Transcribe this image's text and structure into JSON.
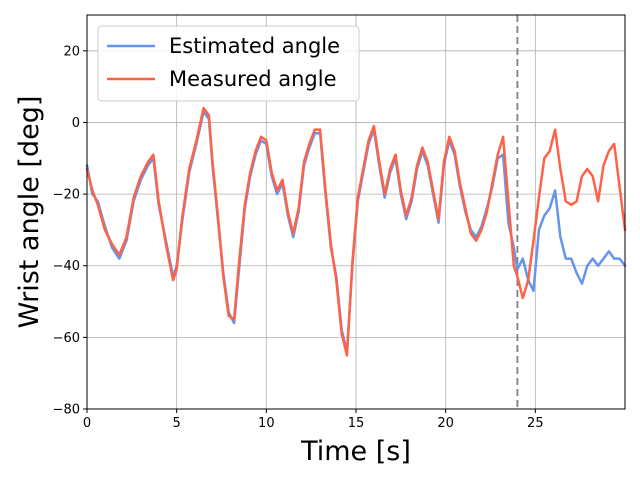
{
  "chart_data": {
    "type": "line",
    "title": "",
    "xlabel": "Time [s]",
    "ylabel": "Wrist angle [deg]",
    "xlim": [
      0,
      30
    ],
    "ylim": [
      -80,
      30
    ],
    "xticks": [
      0,
      5,
      10,
      15,
      20,
      25
    ],
    "yticks": [
      -80,
      -60,
      -40,
      -20,
      0,
      20
    ],
    "grid": true,
    "legend_position": "top-left",
    "vline": {
      "x": 24,
      "style": "dashed",
      "color": "#808080"
    },
    "series": [
      {
        "name": "Estimated angle",
        "color": "#6495ED",
        "x": [
          0,
          0.3,
          0.6,
          1.0,
          1.4,
          1.8,
          2.2,
          2.6,
          3.0,
          3.4,
          3.7,
          4.0,
          4.4,
          4.8,
          5.0,
          5.3,
          5.7,
          6.1,
          6.5,
          6.8,
          7.0,
          7.3,
          7.6,
          7.9,
          8.2,
          8.5,
          8.8,
          9.1,
          9.4,
          9.7,
          10.0,
          10.3,
          10.6,
          10.9,
          11.2,
          11.5,
          11.8,
          12.1,
          12.4,
          12.7,
          13.0,
          13.3,
          13.6,
          13.9,
          14.2,
          14.5,
          14.8,
          15.1,
          15.4,
          15.7,
          16.0,
          16.3,
          16.6,
          16.9,
          17.2,
          17.5,
          17.8,
          18.1,
          18.4,
          18.7,
          19.0,
          19.3,
          19.6,
          19.9,
          20.2,
          20.5,
          20.8,
          21.1,
          21.4,
          21.7,
          22.0,
          22.3,
          22.6,
          22.9,
          23.2,
          23.5,
          23.8,
          24.0,
          24.3,
          24.6,
          24.9,
          25.2,
          25.5,
          25.8,
          26.1,
          26.4,
          26.7,
          27.0,
          27.3,
          27.6,
          27.9,
          28.2,
          28.5,
          28.8,
          29.1,
          29.4,
          29.7,
          30.0
        ],
        "y": [
          -12,
          -20,
          -22,
          -29,
          -35,
          -38,
          -33,
          -22,
          -16,
          -12,
          -10,
          -23,
          -33,
          -43,
          -40,
          -28,
          -14,
          -6,
          3,
          1,
          -12,
          -27,
          -42,
          -53,
          -56,
          -40,
          -24,
          -15,
          -9,
          -5,
          -6,
          -15,
          -20,
          -17,
          -26,
          -32,
          -25,
          -12,
          -7,
          -3,
          -3,
          -20,
          -35,
          -43,
          -58,
          -64,
          -40,
          -22,
          -14,
          -6,
          -2,
          -12,
          -21,
          -14,
          -10,
          -20,
          -27,
          -22,
          -13,
          -8,
          -12,
          -20,
          -28,
          -12,
          -5,
          -9,
          -18,
          -25,
          -30,
          -32,
          -29,
          -24,
          -18,
          -10,
          -9,
          -28,
          -35,
          -41,
          -38,
          -44,
          -47,
          -30,
          -26,
          -24,
          -19,
          -32,
          -38,
          -38,
          -42,
          -45,
          -40,
          -38,
          -40,
          -38,
          -36,
          -38,
          -38,
          -40
        ]
      },
      {
        "name": "Measured angle",
        "color": "#FF6347",
        "x": [
          0,
          0.3,
          0.6,
          1.0,
          1.4,
          1.8,
          2.2,
          2.6,
          3.0,
          3.4,
          3.7,
          4.0,
          4.4,
          4.8,
          5.0,
          5.3,
          5.7,
          6.1,
          6.5,
          6.8,
          7.0,
          7.3,
          7.6,
          7.9,
          8.2,
          8.5,
          8.8,
          9.1,
          9.4,
          9.7,
          10.0,
          10.3,
          10.6,
          10.9,
          11.2,
          11.5,
          11.8,
          12.1,
          12.4,
          12.7,
          13.0,
          13.3,
          13.6,
          13.9,
          14.2,
          14.5,
          14.8,
          15.1,
          15.4,
          15.7,
          16.0,
          16.3,
          16.6,
          16.9,
          17.2,
          17.5,
          17.8,
          18.1,
          18.4,
          18.7,
          19.0,
          19.3,
          19.6,
          19.9,
          20.2,
          20.5,
          20.8,
          21.1,
          21.4,
          21.7,
          22.0,
          22.3,
          22.6,
          22.9,
          23.2,
          23.5,
          23.8,
          24.0,
          24.3,
          24.6,
          24.9,
          25.2,
          25.5,
          25.8,
          26.1,
          26.4,
          26.7,
          27.0,
          27.3,
          27.6,
          27.9,
          28.2,
          28.5,
          28.8,
          29.1,
          29.4,
          29.7,
          30.0
        ],
        "y": [
          -13,
          -19,
          -23,
          -30,
          -34,
          -37,
          -32,
          -21,
          -15,
          -11,
          -9,
          -22,
          -34,
          -44,
          -41,
          -27,
          -13,
          -5,
          4,
          2,
          -11,
          -26,
          -43,
          -54,
          -55,
          -38,
          -23,
          -14,
          -8,
          -4,
          -5,
          -14,
          -19,
          -16,
          -25,
          -31,
          -24,
          -11,
          -6,
          -2,
          -2,
          -19,
          -34,
          -44,
          -59,
          -65,
          -39,
          -21,
          -13,
          -5,
          -1,
          -11,
          -20,
          -13,
          -9,
          -19,
          -26,
          -21,
          -12,
          -7,
          -11,
          -19,
          -27,
          -11,
          -4,
          -8,
          -17,
          -24,
          -31,
          -33,
          -30,
          -25,
          -17,
          -9,
          -4,
          -22,
          -40,
          -43,
          -49,
          -44,
          -33,
          -21,
          -10,
          -8,
          -2,
          -13,
          -22,
          -23,
          -22,
          -15,
          -13,
          -15,
          -22,
          -12,
          -8,
          -6,
          -18,
          -30
        ]
      }
    ]
  }
}
